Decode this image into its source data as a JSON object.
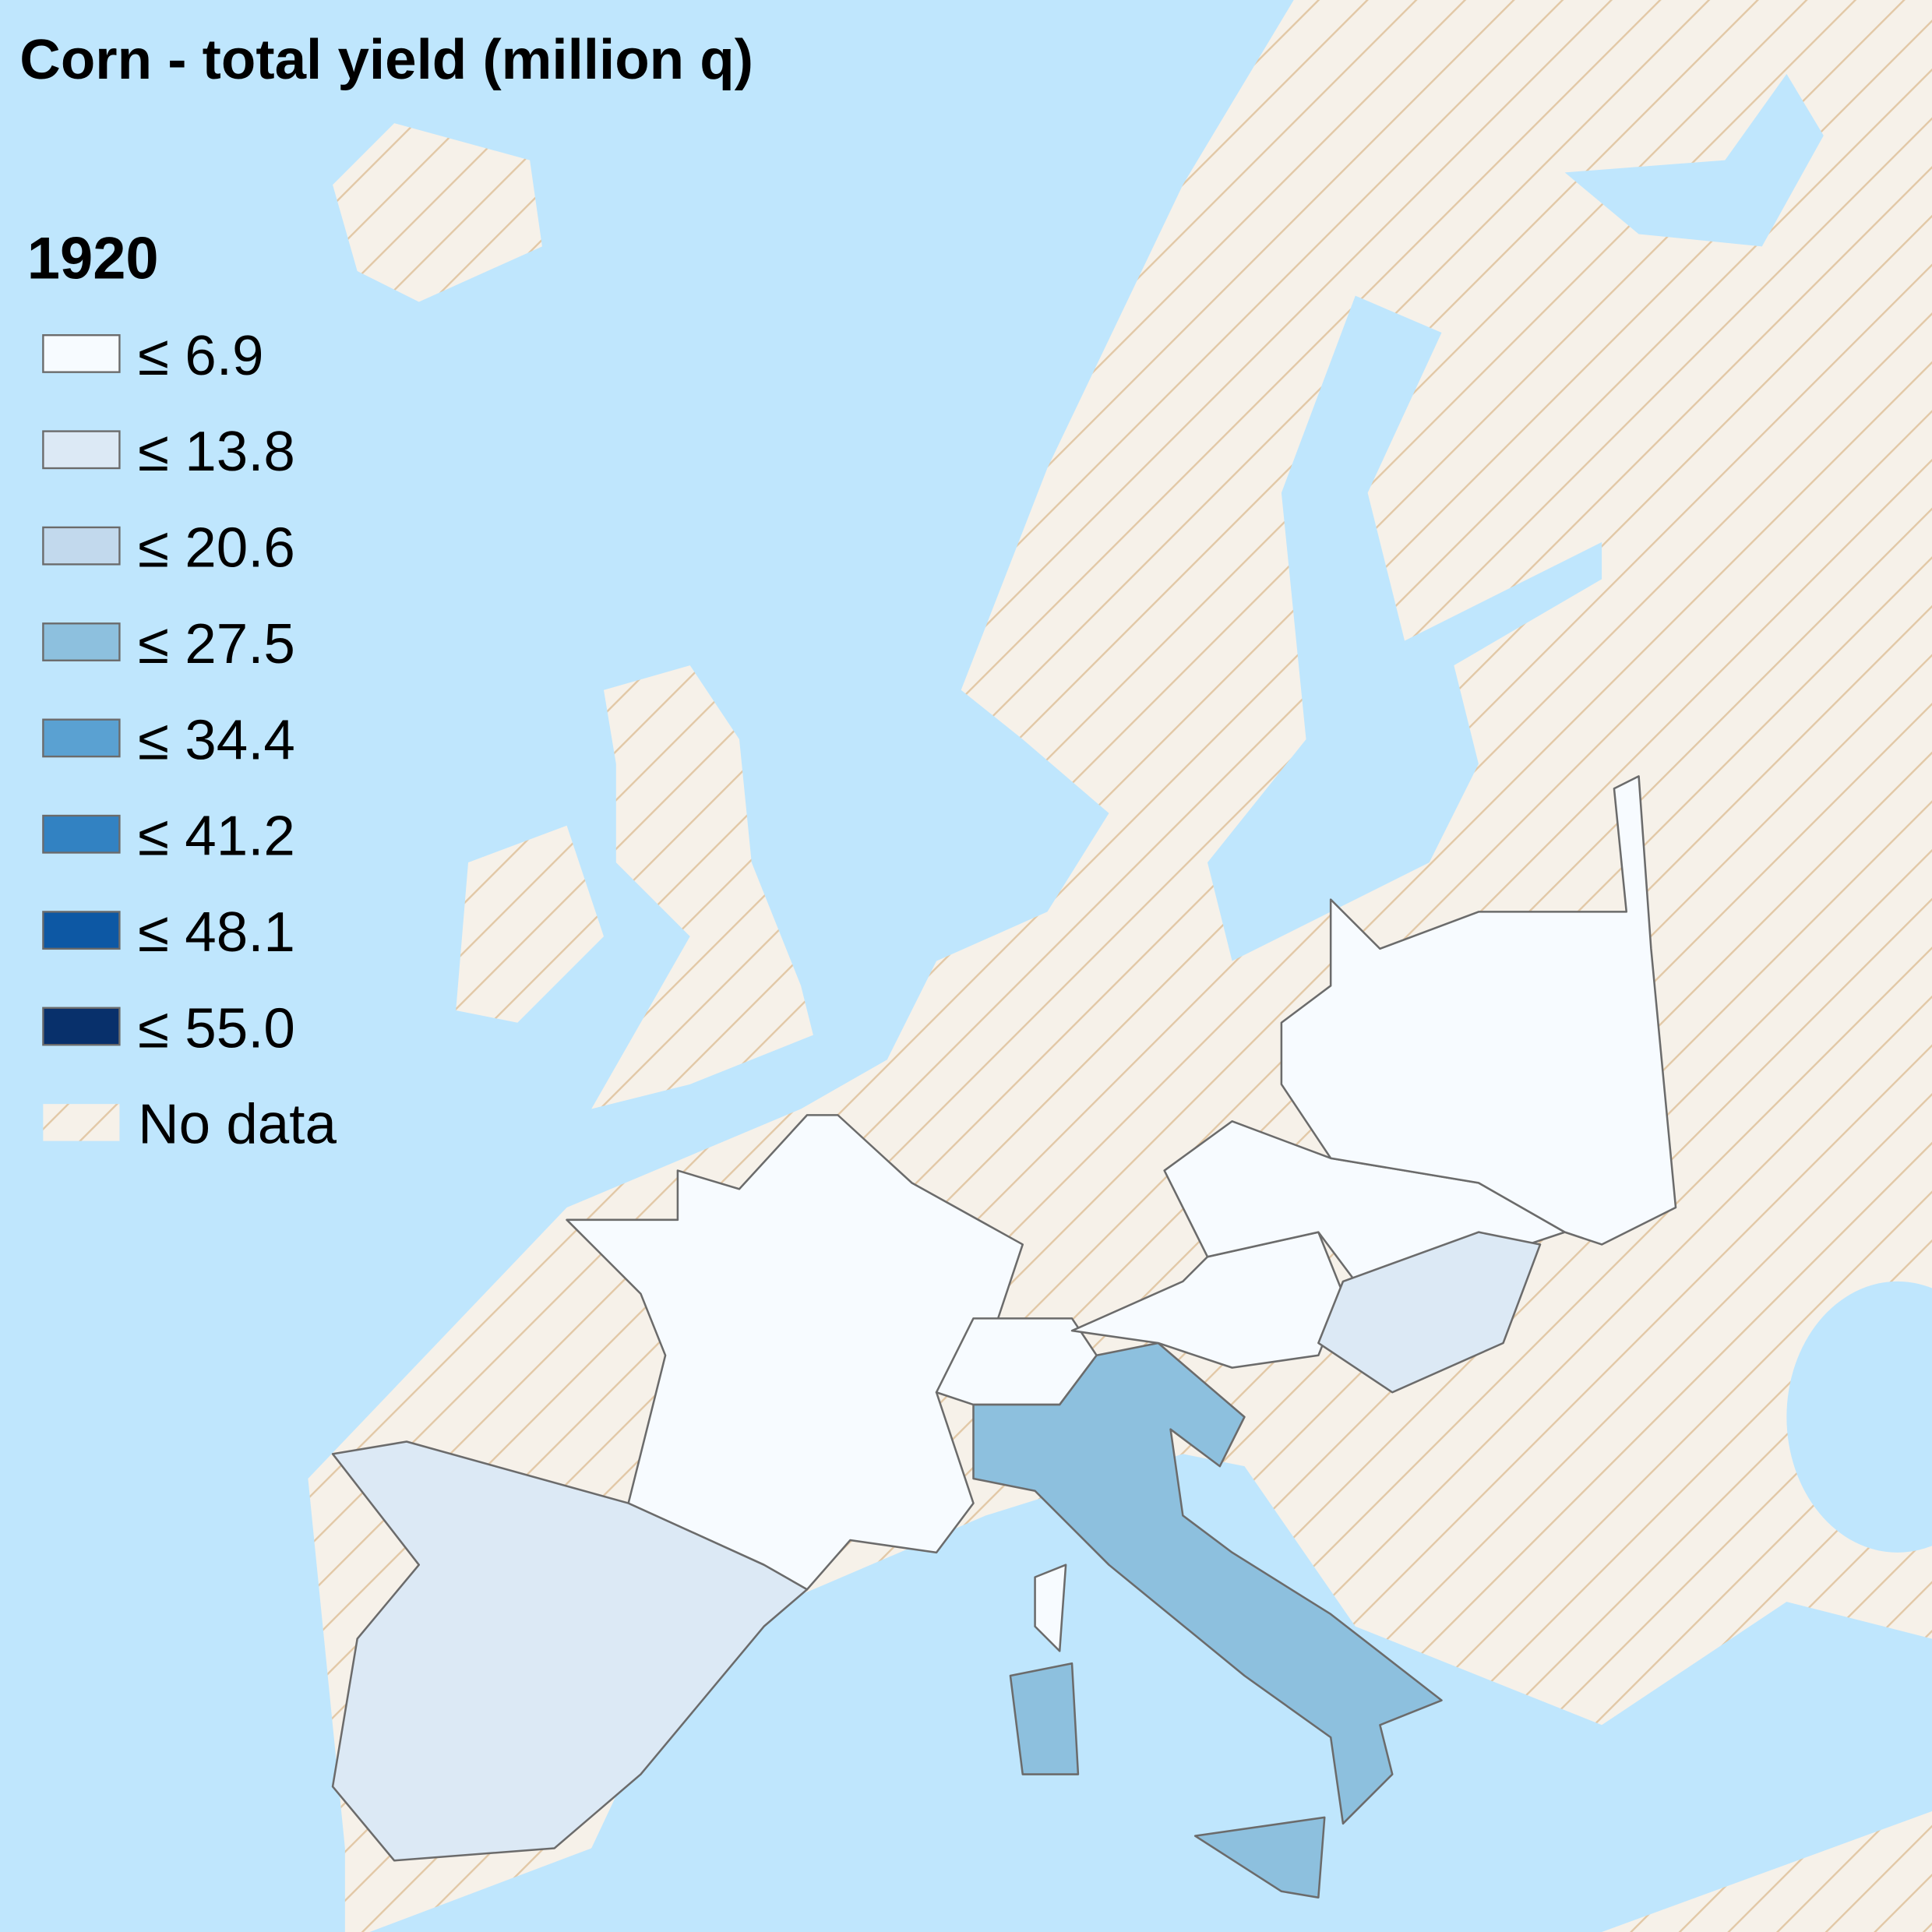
{
  "title": "Corn - total yield (million q)",
  "legend": {
    "title": "1920",
    "items": [
      {
        "label": "≤ 6.9",
        "color": "#f7fbff"
      },
      {
        "label": "≤ 13.8",
        "color": "#dce9f5"
      },
      {
        "label": "≤ 20.6",
        "color": "#c2d9ed"
      },
      {
        "label": "≤ 27.5",
        "color": "#8dc0de"
      },
      {
        "label": "≤ 34.4",
        "color": "#5aa1d2"
      },
      {
        "label": "≤ 41.2",
        "color": "#3282c2"
      },
      {
        "label": "≤ 48.1",
        "color": "#0d58a4"
      },
      {
        "label": "≤ 55.0",
        "color": "#08306b"
      }
    ],
    "no_data": "No data"
  }
}
